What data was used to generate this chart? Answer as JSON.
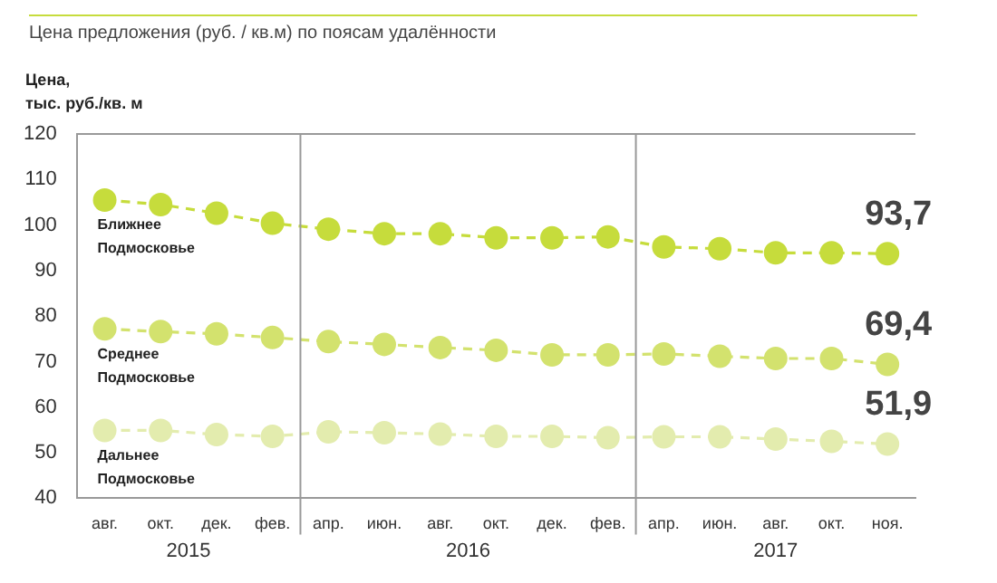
{
  "chart_data": {
    "type": "line",
    "title": "Цена предложения (руб. / кв.м) по поясам удалённости",
    "ylabel": "Цена,\nтыс. руб./кв. м",
    "categories": [
      "авг.",
      "окт.",
      "дек.",
      "фев.",
      "апр.",
      "июн.",
      "авг.",
      "окт.",
      "дек.",
      "фев.",
      "апр.",
      "июн.",
      "авг.",
      "окт.",
      "ноя."
    ],
    "series": [
      {
        "name": "Ближнее\nПодмосковье",
        "color": "#c6dc3c",
        "values": [
          105.5,
          104.5,
          102.6,
          100.4,
          99.1,
          98.1,
          98.1,
          97.2,
          97.2,
          97.4,
          95.2,
          94.8,
          93.9,
          93.9,
          93.7
        ],
        "value_labels": [
          null,
          null,
          null,
          null,
          null,
          null,
          null,
          null,
          null,
          null,
          null,
          null,
          null,
          null,
          "93,7"
        ]
      },
      {
        "name": "Среднее\nПодмосковье",
        "color": "#d3e26e",
        "values": [
          77.2,
          76.6,
          76.1,
          75.3,
          74.4,
          73.8,
          73.1,
          72.5,
          71.5,
          71.5,
          71.7,
          71.2,
          70.7,
          70.7,
          69.4
        ],
        "value_labels": [
          null,
          null,
          null,
          null,
          null,
          null,
          null,
          null,
          null,
          null,
          null,
          null,
          null,
          null,
          "69,4"
        ]
      },
      {
        "name": "Дальнее\nПодмосковье",
        "color": "#e3ecae",
        "values": [
          54.9,
          54.9,
          54.0,
          53.6,
          54.6,
          54.4,
          54.1,
          53.6,
          53.6,
          53.3,
          53.5,
          53.5,
          53.0,
          52.5,
          51.9
        ],
        "value_labels": [
          null,
          null,
          null,
          null,
          null,
          null,
          null,
          null,
          null,
          null,
          null,
          null,
          null,
          null,
          "51,9"
        ]
      }
    ],
    "ylim": [
      40,
      120
    ],
    "yticks": [
      40,
      50,
      60,
      70,
      80,
      90,
      100,
      110,
      120
    ],
    "annotations": [
      "2015",
      "2016",
      "2017"
    ],
    "grid": false,
    "legend": false,
    "marker": "circle",
    "line_style": "dashed"
  }
}
